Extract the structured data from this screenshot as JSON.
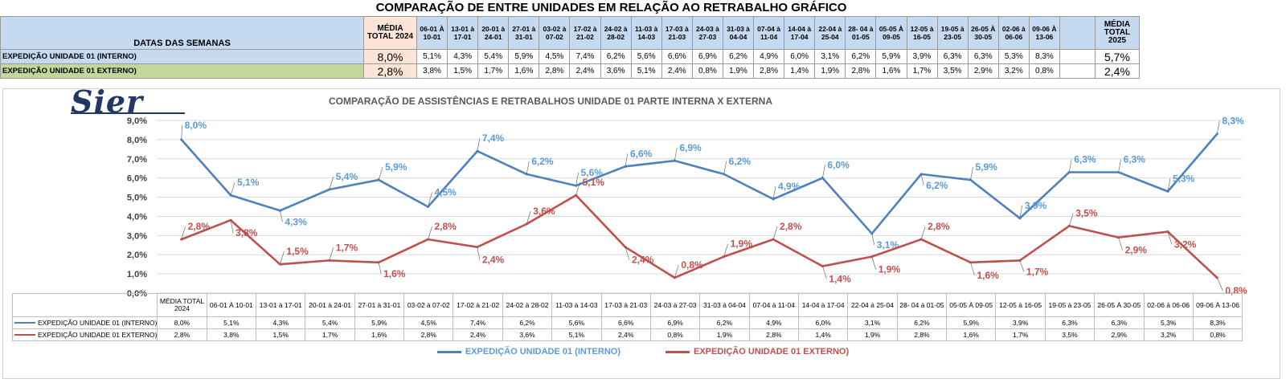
{
  "title": "COMPARAÇÃO DE ENTRE UNIDADES EM RELAÇÃO AO RETRABALHO GRÁFICO",
  "sheet": {
    "weeks_label": "DATAS DAS SEMANAS",
    "avg2024_label": "MÉDIA TOTAL 2024",
    "avg2025_label": "MÉDIA TOTAL 2025",
    "weeks": [
      "06-01 À 10-01",
      "13-01 à 17-01",
      "20-01 à 24-01",
      "27-01 à 31-01",
      "03-02 à 07-02",
      "17-02 à 21-02",
      "24-02 à 28-02",
      "11-03 à 14-03",
      "17-03 à 21-03",
      "24-03 à 27-03",
      "31-03 à 04-04",
      "07-04 à 11-04",
      "14-04 à 17-04",
      "22-04 à 25-04",
      "28- 04 à 01-05",
      "05-05 À 09-05",
      "12-05 à 16-05",
      "19-05 à 23-05",
      "26-05 À 30-05",
      "02-06 à 06-06",
      "09-06 À 13-06"
    ],
    "rows": [
      {
        "label": "EXPEDIÇÃO UNIDADE 01 (INTERNO)",
        "avg2024": "8,0%",
        "values": [
          "5,1%",
          "4,3%",
          "5,4%",
          "5,9%",
          "4,5%",
          "7,4%",
          "6,2%",
          "5,6%",
          "6,6%",
          "6,9%",
          "6,2%",
          "4,9%",
          "6,0%",
          "3,1%",
          "6,2%",
          "5,9%",
          "3,9%",
          "6,3%",
          "6,3%",
          "5,3%",
          "8,3%"
        ],
        "blank": "",
        "avg2025": "5,7%"
      },
      {
        "label": "EXPEDIÇÃO UNIDADE 01 EXTERNO)",
        "avg2024": "2,8%",
        "values": [
          "3,8%",
          "1,5%",
          "1,7%",
          "1,6%",
          "2,8%",
          "2,4%",
          "3,6%",
          "5,1%",
          "2,4%",
          "0,8%",
          "1,9%",
          "2,8%",
          "1,4%",
          "1,9%",
          "2,8%",
          "1,6%",
          "1,7%",
          "3,5%",
          "2,9%",
          "3,2%",
          "0,8%"
        ],
        "blank": "",
        "avg2025": "2,4%"
      }
    ]
  },
  "logo_text": "Sier",
  "chart_data": {
    "type": "line",
    "title": "COMPARAÇÃO DE ASSISTÊNCIAS E RETRABALHOS UNIDADE 01 PARTE INTERNA X EXTERNA",
    "categories": [
      "MÉDIA TOTAL 2024",
      "06-01 À 10-01",
      "13-01 à 17-01",
      "20-01 à 24-01",
      "27-01 à 31-01",
      "03-02 à 07-02",
      "17-02 à 21-02",
      "24-02 à 28-02",
      "11-03 à 14-03",
      "17-03 à 21-03",
      "24-03 à 27-03",
      "31-03 à 04-04",
      "07-04 à 11-04",
      "14-04 à 17-04",
      "22-04 à 25-04",
      "28- 04 à 01-05",
      "05-05 À 09-05",
      "12-05 à 16-05",
      "19-05 à 23-05",
      "26-05 À 30-05",
      "02-06 à 06-06",
      "09-06 À 13-06"
    ],
    "series": [
      {
        "name": "EXPEDIÇÃO UNIDADE 01 (INTERNO)",
        "color": "#4f81bd",
        "label_color": "#5b9bd5",
        "values": [
          8.0,
          5.1,
          4.3,
          5.4,
          5.9,
          4.5,
          7.4,
          6.2,
          5.6,
          6.6,
          6.9,
          6.2,
          4.9,
          6.0,
          3.1,
          6.2,
          5.9,
          3.9,
          6.3,
          6.3,
          5.3,
          8.3
        ],
        "labels": [
          "8,0%",
          "5,1%",
          "4,3%",
          "5,4%",
          "5,9%",
          "4,5%",
          "7,4%",
          "6,2%",
          "5,6%",
          "6,6%",
          "6,9%",
          "6,2%",
          "4,9%",
          "6,0%",
          "3,1%",
          "6,2%",
          "5,9%",
          "3,9%",
          "6,3%",
          "6,3%",
          "5,3%",
          "8,3%"
        ]
      },
      {
        "name": "EXPEDIÇÃO UNIDADE 01 EXTERNO)",
        "color": "#c0504d",
        "label_color": "#c0504d",
        "values": [
          2.8,
          3.8,
          1.5,
          1.7,
          1.6,
          2.8,
          2.4,
          3.6,
          5.1,
          2.4,
          0.8,
          1.9,
          2.8,
          1.4,
          1.9,
          2.8,
          1.6,
          1.7,
          3.5,
          2.9,
          3.2,
          0.8
        ],
        "labels": [
          "2,8%",
          "3,8%",
          "1,5%",
          "1,7%",
          "1,6%",
          "2,8%",
          "2,4%",
          "3,6%",
          "5,1%",
          "2,4%",
          "0,8%",
          "1,9%",
          "2,8%",
          "1,4%",
          "1,9%",
          "2,8%",
          "1,6%",
          "1,7%",
          "3,5%",
          "2,9%",
          "3,2%",
          "0,8%"
        ]
      }
    ],
    "ylim": [
      0,
      9
    ],
    "yticks": [
      "0,0%",
      "1,0%",
      "2,0%",
      "3,0%",
      "4,0%",
      "5,0%",
      "6,0%",
      "7,0%",
      "8,0%",
      "9,0%"
    ],
    "grid": true,
    "legend": "bottom"
  }
}
